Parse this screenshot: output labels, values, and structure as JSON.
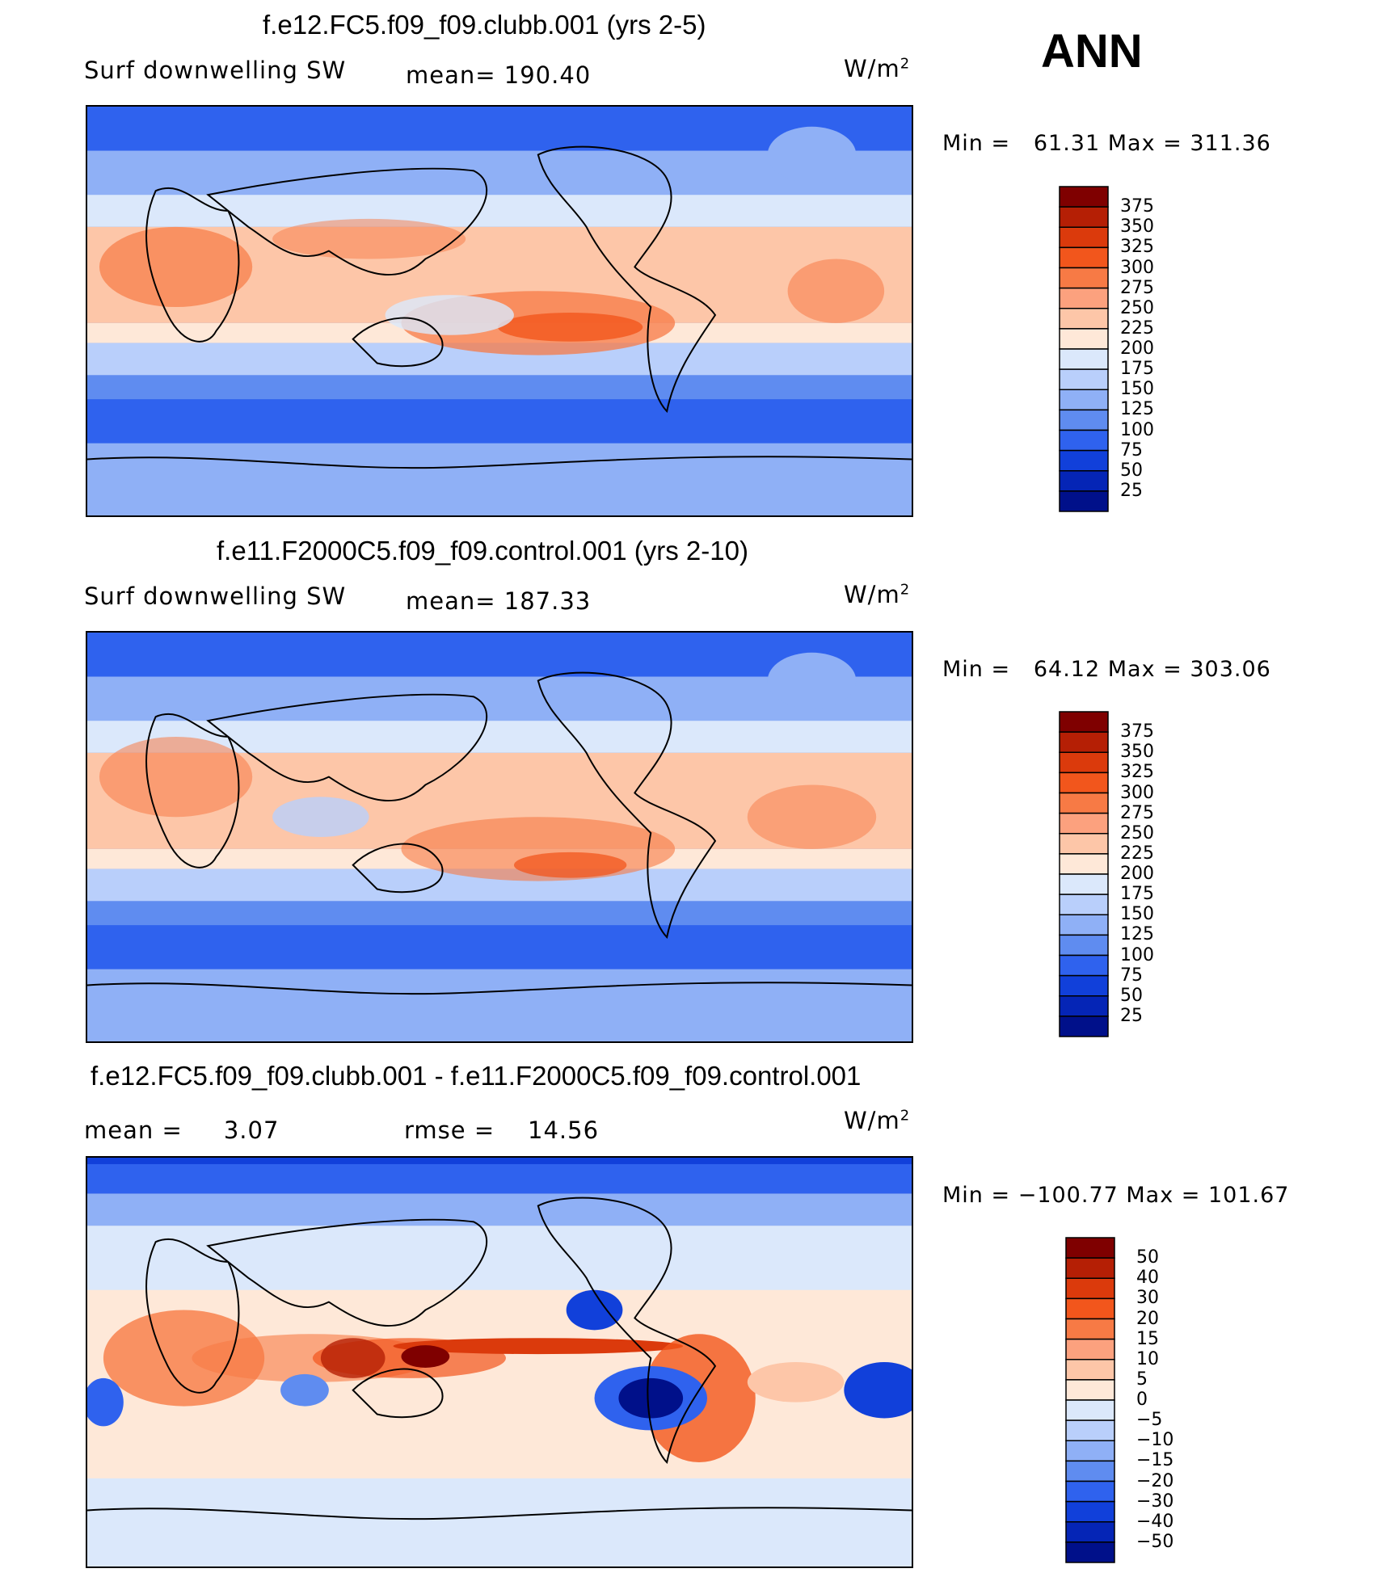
{
  "season": "ANN",
  "panels": [
    {
      "title": "f.e12.FC5.f09_f09.clubb.001 (yrs 2-5)",
      "left": "Surf downwelling SW",
      "middle": "mean= 190.40",
      "units": "W/m",
      "units_exp": "2",
      "minmax": "Min =   61.31 Max = 311.36",
      "colorbar": {
        "levels": [
          "375",
          "350",
          "325",
          "300",
          "275",
          "250",
          "225",
          "200",
          "175",
          "150",
          "125",
          "100",
          "75",
          "50",
          "25"
        ],
        "colors": [
          "#7f0000",
          "#b51f05",
          "#db3a0c",
          "#f2561c",
          "#f77a45",
          "#fca17e",
          "#fdc6a8",
          "#fee8d8",
          "#dbe8fb",
          "#b9cffb",
          "#8fb0f6",
          "#5f8cf0",
          "#2f62ee",
          "#1140da",
          "#0525b6",
          "#00108a"
        ]
      }
    },
    {
      "title": "f.e11.F2000C5.f09_f09.control.001 (yrs 2-10)",
      "left": "Surf downwelling SW",
      "middle": "mean= 187.33",
      "units": "W/m",
      "units_exp": "2",
      "minmax": "Min =   64.12 Max = 303.06",
      "colorbar": {
        "levels": [
          "375",
          "350",
          "325",
          "300",
          "275",
          "250",
          "225",
          "200",
          "175",
          "150",
          "125",
          "100",
          "75",
          "50",
          "25"
        ],
        "colors": [
          "#7f0000",
          "#b51f05",
          "#db3a0c",
          "#f2561c",
          "#f77a45",
          "#fca17e",
          "#fdc6a8",
          "#fee8d8",
          "#dbe8fb",
          "#b9cffb",
          "#8fb0f6",
          "#5f8cf0",
          "#2f62ee",
          "#1140da",
          "#0525b6",
          "#00108a"
        ]
      }
    },
    {
      "title": "f.e12.FC5.f09_f09.clubb.001 - f.e11.F2000C5.f09_f09.control.001",
      "left": "mean =     3.07",
      "middle": "rmse =    14.56",
      "units": "W/m",
      "units_exp": "2",
      "minmax": "Min = −100.77 Max = 101.67",
      "colorbar": {
        "levels": [
          "50",
          "40",
          "30",
          "20",
          "15",
          "10",
          "5",
          "0",
          "−5",
          "−10",
          "−15",
          "−20",
          "−30",
          "−40",
          "−50"
        ],
        "colors": [
          "#7f0000",
          "#b51f05",
          "#db3a0c",
          "#f2561c",
          "#f77a45",
          "#fca17e",
          "#fdc6a8",
          "#fee8d8",
          "#dbe8fb",
          "#b9cffb",
          "#8fb0f6",
          "#5f8cf0",
          "#2f62ee",
          "#1140da",
          "#0525b6",
          "#00108a"
        ]
      }
    }
  ]
}
